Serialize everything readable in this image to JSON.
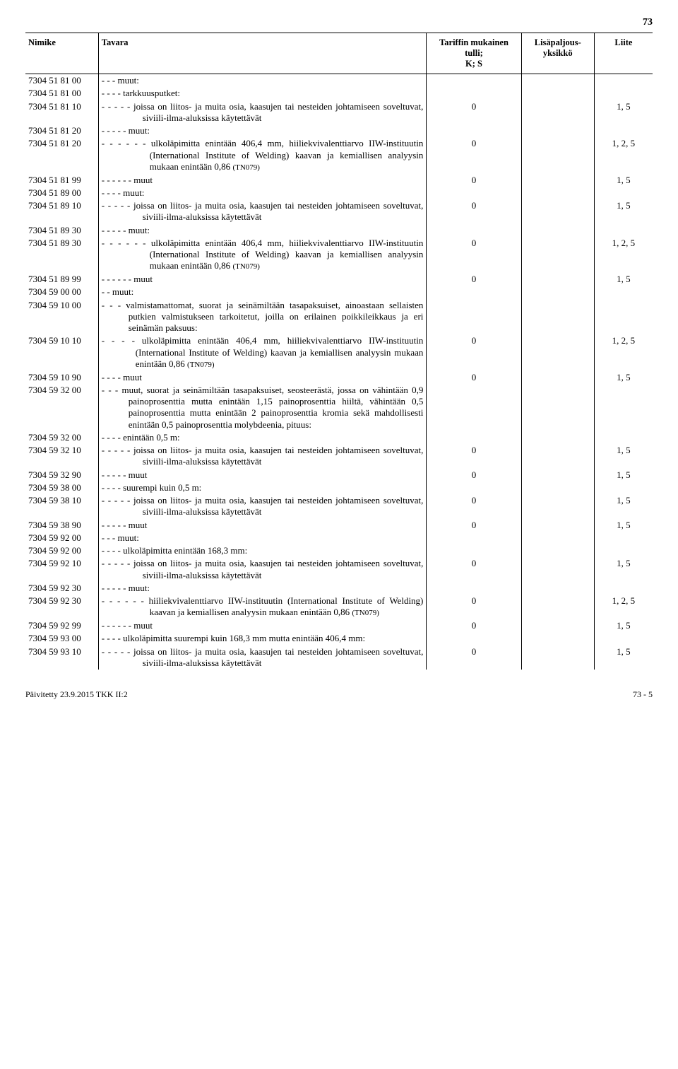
{
  "page_number_top": "73",
  "header": {
    "nimike": "Nimike",
    "tavara": "Tavara",
    "tariffi": "Tariffin mukainen tulli;\nK; S",
    "lisapaljous": "Lisäpaljous-\nyksikkö",
    "liite": "Liite"
  },
  "rows": [
    {
      "code": "7304 51 81 00",
      "desc": "- - - muut:",
      "tariff": "",
      "annex": ""
    },
    {
      "code": "7304 51 81 00",
      "desc": "- - - - tarkkuusputket:",
      "tariff": "",
      "annex": ""
    },
    {
      "code": "7304 51 81 10",
      "desc": "- - - - - joissa on liitos- ja muita osia, kaasujen tai nesteiden johtamiseen soveltuvat, siviili-ilma-aluksissa käytettävät",
      "tariff": "0",
      "annex": "1, 5"
    },
    {
      "code": "7304 51 81 20",
      "desc": "- - - - - muut:",
      "tariff": "",
      "annex": ""
    },
    {
      "code": "7304 51 81 20",
      "desc": "- - - - - - ulkoläpimitta enintään 406,4 mm, hiiliekvivalenttiarvo IIW-instituutin (International Institute of Welding) kaavan ja kemiallisen analyysin mukaan enintään 0,86 ",
      "tn": "(TN079)",
      "tariff": "0",
      "annex": "1, 2, 5"
    },
    {
      "code": "7304 51 81 99",
      "desc": "- - - - - - muut",
      "tariff": "0",
      "annex": "1, 5"
    },
    {
      "code": "7304 51 89 00",
      "desc": "- - - - muut:",
      "tariff": "",
      "annex": ""
    },
    {
      "code": "7304 51 89 10",
      "desc": "- - - - - joissa on liitos- ja muita osia, kaasujen tai nesteiden johtamiseen soveltuvat, siviili-ilma-aluksissa käytettävät",
      "tariff": "0",
      "annex": "1, 5"
    },
    {
      "code": "7304 51 89 30",
      "desc": "- - - - - muut:",
      "tariff": "",
      "annex": ""
    },
    {
      "code": "7304 51 89 30",
      "desc": "- - - - - - ulkoläpimitta enintään 406,4 mm, hiiliekvivalenttiarvo IIW-instituutin (International Institute of Welding) kaavan ja kemiallisen analyysin mukaan enintään 0,86 ",
      "tn": "(TN079)",
      "tariff": "0",
      "annex": "1, 2, 5"
    },
    {
      "code": "7304 51 89 99",
      "desc": "- - - - - - muut",
      "tariff": "0",
      "annex": "1, 5"
    },
    {
      "code": "7304 59 00 00",
      "desc": "- - muut:",
      "tariff": "",
      "annex": ""
    },
    {
      "code": "7304 59 10 00",
      "desc": "- - - valmistamattomat, suorat ja seinämiltään tasapaksuiset, ainoastaan sellaisten putkien valmistukseen tarkoitetut, joilla on erilainen poikkileikkaus ja eri seinämän paksuus:",
      "tariff": "",
      "annex": ""
    },
    {
      "code": "7304 59 10 10",
      "desc": "- - - - ulkoläpimitta enintään 406,4 mm, hiiliekvivalenttiarvo IIW-instituutin (International Institute of Welding) kaavan ja kemiallisen analyysin mukaan enintään 0,86 ",
      "tn": "(TN079)",
      "tariff": "0",
      "annex": "1, 2, 5"
    },
    {
      "code": "7304 59 10 90",
      "desc": "- - - - muut",
      "tariff": "0",
      "annex": "1, 5"
    },
    {
      "code": "7304 59 32 00",
      "desc": "- - - muut, suorat ja seinämiltään tasapaksuiset, seosteerästä, jossa on vähintään 0,9 painoprosenttia mutta enintään 1,15 painoprosenttia hiiltä, vähintään 0,5 painoprosenttia mutta enintään 2 painoprosenttia kromia sekä mahdollisesti enintään 0,5 painoprosenttia molybdeenia, pituus:",
      "tariff": "",
      "annex": ""
    },
    {
      "code": "7304 59 32 00",
      "desc": "- - - - enintään 0,5 m:",
      "tariff": "",
      "annex": ""
    },
    {
      "code": "7304 59 32 10",
      "desc": "- - - - - joissa on liitos- ja muita osia, kaasujen tai nesteiden johtamiseen soveltuvat, siviili-ilma-aluksissa käytettävät",
      "tariff": "0",
      "annex": "1, 5"
    },
    {
      "code": "7304 59 32 90",
      "desc": "- - - - - muut",
      "tariff": "0",
      "annex": "1, 5"
    },
    {
      "code": "7304 59 38 00",
      "desc": "- - - - suurempi kuin 0,5 m:",
      "tariff": "",
      "annex": ""
    },
    {
      "code": "7304 59 38 10",
      "desc": "- - - - - joissa on liitos- ja muita osia, kaasujen tai nesteiden johtamiseen soveltuvat, siviili-ilma-aluksissa käytettävät",
      "tariff": "0",
      "annex": "1, 5"
    },
    {
      "code": "7304 59 38 90",
      "desc": "- - - - - muut",
      "tariff": "0",
      "annex": "1, 5"
    },
    {
      "code": "7304 59 92 00",
      "desc": "- - - muut:",
      "tariff": "",
      "annex": ""
    },
    {
      "code": "7304 59 92 00",
      "desc": "- - - - ulkoläpimitta enintään 168,3 mm:",
      "tariff": "",
      "annex": ""
    },
    {
      "code": "7304 59 92 10",
      "desc": "- - - - - joissa on liitos- ja muita osia, kaasujen tai nesteiden johtamiseen soveltuvat, siviili-ilma-aluksissa käytettävät",
      "tariff": "0",
      "annex": "1, 5"
    },
    {
      "code": "7304 59 92 30",
      "desc": "- - - - - muut:",
      "tariff": "",
      "annex": ""
    },
    {
      "code": "7304 59 92 30",
      "desc": "- - - - - - hiiliekvivalenttiarvo IIW-instituutin (International Institute of Welding) kaavan ja kemiallisen analyysin mukaan enintään 0,86 ",
      "tn": "(TN079)",
      "tariff": "0",
      "annex": "1, 2, 5"
    },
    {
      "code": "7304 59 92 99",
      "desc": "- - - - - - muut",
      "tariff": "0",
      "annex": "1, 5"
    },
    {
      "code": "7304 59 93 00",
      "desc": "- - - - ulkoläpimitta suurempi kuin 168,3 mm mutta enintään 406,4 mm:",
      "tariff": "",
      "annex": ""
    },
    {
      "code": "7304 59 93 10",
      "desc": "- - - - - joissa on liitos- ja muita osia, kaasujen tai nesteiden johtamiseen soveltuvat, siviili-ilma-aluksissa käytettävät",
      "tariff": "0",
      "annex": "1, 5"
    }
  ],
  "footer": {
    "left": "Päivitetty 23.9.2015 TKK II:2",
    "right": "73 - 5"
  }
}
